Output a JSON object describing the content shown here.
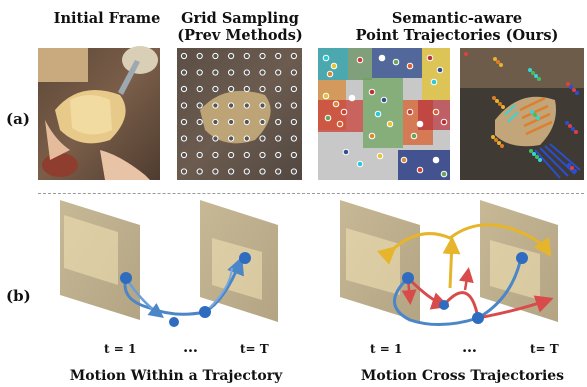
{
  "figure": {
    "headers": {
      "initial_frame": "Initial Frame",
      "grid_sampling_line1": "Grid Sampling",
      "grid_sampling_line2": "(Prev Methods)",
      "semantic_line1": "Semantic-aware",
      "semantic_line2": "Point Trajectories (Ours)"
    },
    "row_labels": {
      "a": "(a)",
      "b": "(b)"
    },
    "time_labels": {
      "t1": "t = 1",
      "dots": "…",
      "tT": "t= T"
    },
    "captions": {
      "left": "Motion Within a Trajectory",
      "right": "Motion Cross Trajectories"
    },
    "colors": {
      "trajectory_blue": "#4a86c8",
      "trajectory_red": "#d94a4a",
      "trajectory_yellow": "#e6b52c",
      "grid_point": "#555555"
    }
  }
}
